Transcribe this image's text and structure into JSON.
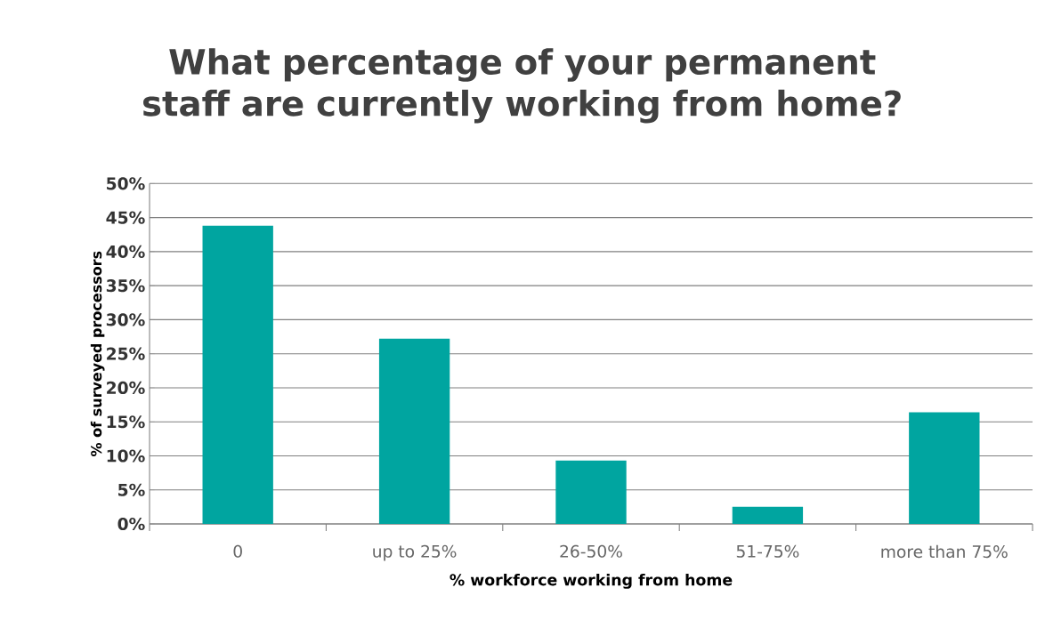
{
  "chart_data": {
    "type": "bar",
    "title": "What percentage of your permanent staff are currently working from home?",
    "xlabel": "% workforce working from home",
    "ylabel": "% of surveyed processors",
    "categories": [
      "0",
      "up to 25%",
      "26-50%",
      "51-75%",
      "more than 75%"
    ],
    "values": [
      43.8,
      27.2,
      9.3,
      2.5,
      16.4
    ],
    "color": "#00a5a0",
    "ylim": [
      0,
      50
    ],
    "yticks": [
      {
        "value": 0,
        "label": "0%"
      },
      {
        "value": 5,
        "label": "5%"
      },
      {
        "value": 10,
        "label": "10%"
      },
      {
        "value": 15,
        "label": "15%"
      },
      {
        "value": 20,
        "label": "20%"
      },
      {
        "value": 25,
        "label": "25%"
      },
      {
        "value": 30,
        "label": "30%"
      },
      {
        "value": 35,
        "label": "35%"
      },
      {
        "value": 40,
        "label": "40%"
      },
      {
        "value": 45,
        "label": "45%"
      },
      {
        "value": 50,
        "label": "50%"
      }
    ],
    "grid": "y"
  }
}
